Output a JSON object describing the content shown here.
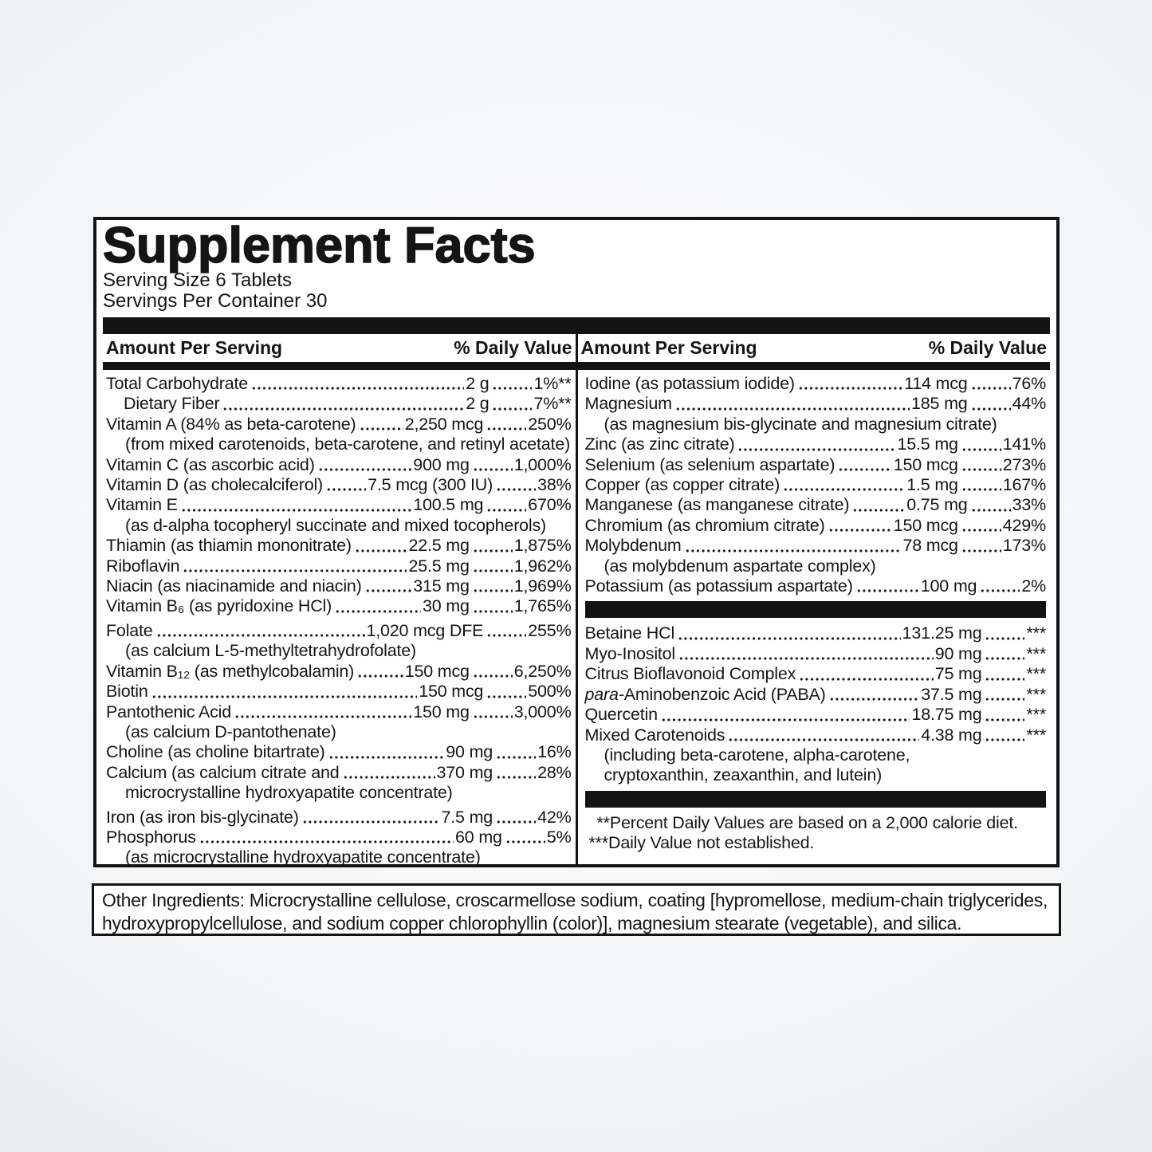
{
  "title": "Supplement Facts",
  "serving_size": "Serving Size 6 Tablets",
  "servings_per_container": "Servings Per Container 30",
  "header": {
    "amount_label": "Amount Per Serving",
    "dv_label": "% Daily Value"
  },
  "left_column": {
    "rows": [
      {
        "type": "item",
        "name": "Total Carbohydrate",
        "amount": "2 g",
        "dv": "1%**"
      },
      {
        "type": "item",
        "name": "Dietary Fiber",
        "amount": "2 g",
        "dv": "7%**",
        "indent": true
      },
      {
        "type": "item",
        "name": "Vitamin A (84% as beta-carotene)",
        "amount": "2,250 mcg",
        "dv": "250%"
      },
      {
        "type": "note",
        "text": "(from mixed carotenoids, beta-carotene, and retinyl acetate)"
      },
      {
        "type": "item",
        "name": "Vitamin C (as ascorbic acid)",
        "amount": "900 mg",
        "dv": "1,000%"
      },
      {
        "type": "item",
        "name": "Vitamin D (as cholecalciferol)",
        "amount": "7.5 mcg (300 IU)",
        "dv": "38%"
      },
      {
        "type": "item",
        "name": "Vitamin E",
        "amount": "100.5 mg",
        "dv": "670%"
      },
      {
        "type": "note",
        "text": "(as d-alpha tocopheryl succinate and mixed tocopherols)"
      },
      {
        "type": "item",
        "name": "Thiamin (as thiamin mononitrate)",
        "amount": "22.5 mg",
        "dv": "1,875%"
      },
      {
        "type": "item",
        "name": "Riboflavin",
        "amount": "25.5 mg",
        "dv": "1,962%"
      },
      {
        "type": "item",
        "name": "Niacin (as niacinamide and niacin)",
        "amount": "315 mg",
        "dv": "1,969%"
      },
      {
        "type": "item",
        "name": "Vitamin B₆ (as pyridoxine HCl)",
        "amount": "30 mg",
        "dv": "1,765%"
      },
      {
        "type": "item",
        "name": "Folate",
        "amount": "1,020 mcg DFE",
        "dv": "255%",
        "gap": true
      },
      {
        "type": "note",
        "text": "(as calcium L-5-methyltetrahydrofolate)"
      },
      {
        "type": "item",
        "name": "Vitamin B₁₂ (as methylcobalamin)",
        "amount": "150 mcg",
        "dv": "6,250%"
      },
      {
        "type": "item",
        "name": "Biotin",
        "amount": "150 mcg",
        "dv": "500%"
      },
      {
        "type": "item",
        "name": "Pantothenic Acid",
        "amount": "150 mg",
        "dv": "3,000%"
      },
      {
        "type": "note",
        "text": "(as calcium D-pantothenate)"
      },
      {
        "type": "item",
        "name": "Choline (as choline bitartrate)",
        "amount": "90 mg",
        "dv": "16%"
      },
      {
        "type": "item",
        "name": "Calcium (as calcium citrate and",
        "amount": "370 mg",
        "dv": "28%"
      },
      {
        "type": "note",
        "text": "microcrystalline hydroxyapatite concentrate)"
      },
      {
        "type": "item",
        "name": "Iron (as iron bis-glycinate)",
        "amount": "7.5 mg",
        "dv": "42%",
        "gap": true
      },
      {
        "type": "item",
        "name": "Phosphorus",
        "amount": "60 mg",
        "dv": "5%"
      },
      {
        "type": "note",
        "text": "(as microcrystalline hydroxyapatite concentrate)"
      }
    ]
  },
  "right_column": {
    "rows": [
      {
        "type": "item",
        "name": "Iodine (as potassium iodide)",
        "amount": "114 mcg",
        "dv": "76%"
      },
      {
        "type": "item",
        "name": "Magnesium",
        "amount": "185 mg",
        "dv": "44%"
      },
      {
        "type": "note",
        "text": "(as magnesium bis-glycinate and magnesium citrate)"
      },
      {
        "type": "item",
        "name": "Zinc (as zinc citrate)",
        "amount": "15.5 mg",
        "dv": "141%"
      },
      {
        "type": "item",
        "name": "Selenium (as selenium aspartate)",
        "amount": "150 mcg",
        "dv": "273%"
      },
      {
        "type": "item",
        "name": "Copper (as copper citrate)",
        "amount": "1.5 mg",
        "dv": "167%"
      },
      {
        "type": "item",
        "name": "Manganese (as manganese citrate)",
        "amount": "0.75 mg",
        "dv": "33%"
      },
      {
        "type": "item",
        "name": "Chromium (as chromium citrate)",
        "amount": "150 mcg",
        "dv": "429%"
      },
      {
        "type": "item",
        "name": "Molybdenum",
        "amount": "78 mcg",
        "dv": "173%"
      },
      {
        "type": "note",
        "text": "(as molybdenum aspartate complex)"
      },
      {
        "type": "item",
        "name": "Potassium (as potassium aspartate)",
        "amount": "100 mg",
        "dv": "2%"
      },
      {
        "type": "bar"
      },
      {
        "type": "item",
        "name": "Betaine HCl",
        "amount": "131.25 mg",
        "dv": "***"
      },
      {
        "type": "item",
        "name": "Myo-Inositol",
        "amount": "90 mg",
        "dv": "***"
      },
      {
        "type": "item",
        "name": "Citrus Bioflavonoid Complex",
        "amount": "75 mg",
        "dv": "***"
      },
      {
        "type": "item",
        "name_italic": "para-",
        "name": "Aminobenzoic Acid (PABA)",
        "amount": "37.5 mg",
        "dv": "***"
      },
      {
        "type": "item",
        "name": "Quercetin",
        "amount": "18.75 mg",
        "dv": "***"
      },
      {
        "type": "item",
        "name": "Mixed Carotenoids",
        "amount": "4.38 mg",
        "dv": "***"
      },
      {
        "type": "note",
        "text": "(including beta-carotene, alpha-carotene,"
      },
      {
        "type": "note",
        "text": "cryptoxanthin, zeaxanthin, and lutein)"
      },
      {
        "type": "bar"
      },
      {
        "type": "footnote",
        "text": "**Percent Daily Values are based on a 2,000 calorie diet."
      },
      {
        "type": "footnote",
        "text": "***Daily Value not established."
      }
    ]
  },
  "other_ingredients": "Other Ingredients: Microcrystalline cellulose, croscarmellose sodium, coating [hypromellose, medium-chain triglycerides, hydroxypropylcellulose, and sodium copper chlorophyllin (color)], magnesium stearate (vegetable), and silica.",
  "colors": {
    "panel_background": "#ffffff",
    "bar": "#141414",
    "text": "#151515",
    "page_background_center": "#fdfdfe",
    "page_background_edge": "#dde1e6"
  }
}
